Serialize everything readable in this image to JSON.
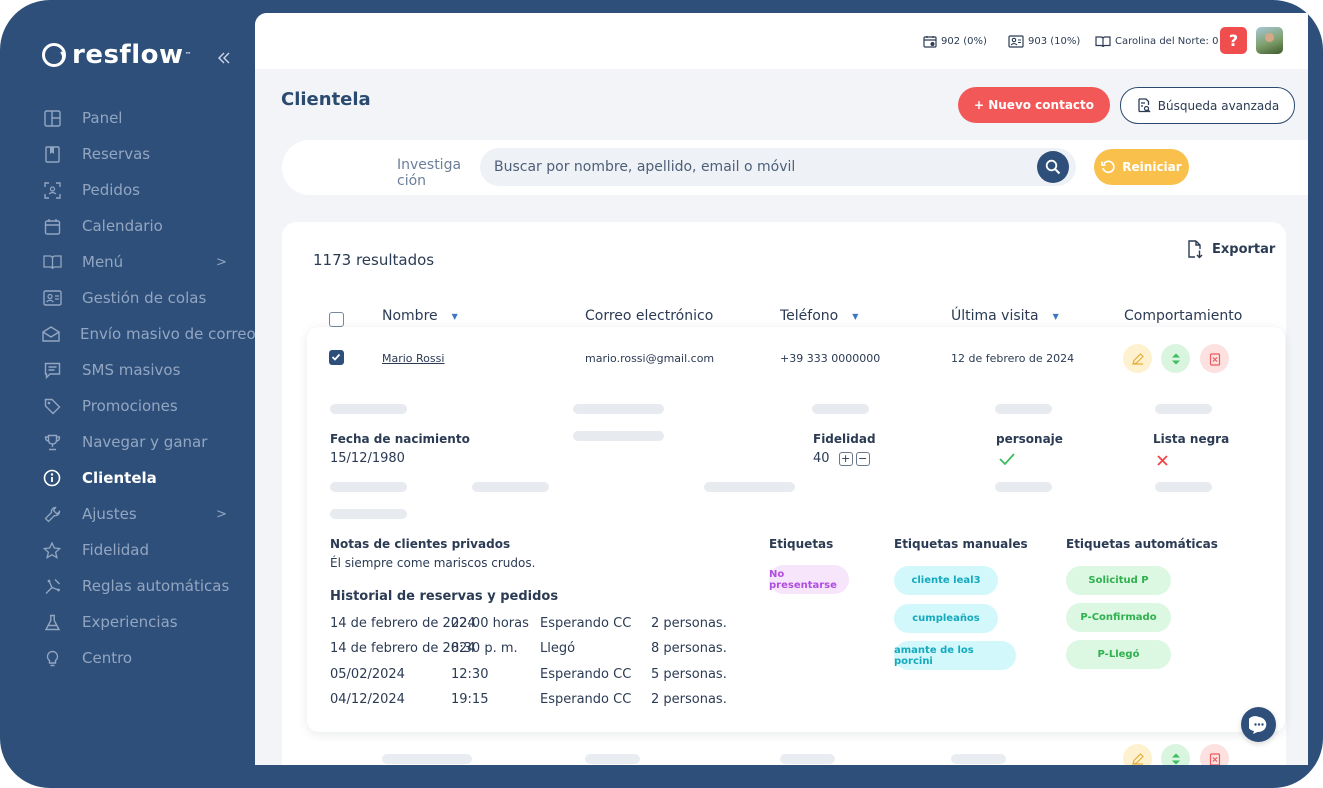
{
  "brand": {
    "name": "resflow",
    "tm": "™"
  },
  "sidebar": {
    "collapse_icon": "double-chevron-left-icon",
    "items": [
      {
        "label": "Panel",
        "icon": "panel-icon"
      },
      {
        "label": "Reservas",
        "icon": "bookmark-icon"
      },
      {
        "label": "Pedidos",
        "icon": "scan-icon"
      },
      {
        "label": "Calendario",
        "icon": "calendar-icon"
      },
      {
        "label": "Menú",
        "icon": "book-icon",
        "chevron": ">"
      },
      {
        "label": "Gestión de colas",
        "icon": "id-card-icon"
      },
      {
        "label": "Envío masivo de correo",
        "icon": "mail-icon"
      },
      {
        "label": "SMS masivos",
        "icon": "message-icon"
      },
      {
        "label": "Promociones",
        "icon": "tag-icon"
      },
      {
        "label": "Navegar y ganar",
        "icon": "trophy-icon"
      },
      {
        "label": "Clientela",
        "icon": "info-icon",
        "active": true
      },
      {
        "label": "Ajustes",
        "icon": "wrench-icon",
        "chevron": ">"
      },
      {
        "label": "Fidelidad",
        "icon": "star-icon"
      },
      {
        "label": "Reglas automáticas",
        "icon": "automation-icon"
      },
      {
        "label": "Experiencias",
        "icon": "flask-icon"
      },
      {
        "label": "Centro",
        "icon": "lightbulb-icon"
      }
    ]
  },
  "topbar": {
    "stat1": "902 (0%)",
    "stat2": "903 (10%)",
    "stat3": "Carolina del Norte: 0",
    "help_label": "?"
  },
  "page": {
    "title": "Clientela",
    "new_contact": "+ Nuevo contacto",
    "advanced_search": "Búsqueda avanzada"
  },
  "search": {
    "label": "Investiga ción",
    "placeholder": "Buscar por nombre, apellido, email o móvil",
    "value": "",
    "reset": "Reiniciar"
  },
  "results": {
    "count": "1173 resultados",
    "export": "Exportar",
    "columns": [
      "Nombre",
      "Correo electrónico",
      "Teléfono",
      "Última visita",
      "Comportamiento"
    ]
  },
  "customer": {
    "checked": true,
    "name": "Mario Rossi",
    "email": "mario.rossi@gmail.com",
    "phone": "+39 333 0000000",
    "last_visit": "12 de febrero de 2024",
    "birth_label": "Fecha de nacimiento",
    "birth_value": "15/12/1980",
    "loyalty_label": "Fidelidad",
    "loyalty_value": "40",
    "loyalty_plus": "+",
    "loyalty_minus": "−",
    "character_label": "personaje",
    "blacklist_label": "Lista negra",
    "notes_label": "Notas de clientes privados",
    "notes_value": "Él siempre come mariscos crudos.",
    "history_label": "Historial de reservas y pedidos",
    "history": [
      {
        "date": "14 de febrero de 2024",
        "time": "22:00 horas",
        "status": "Esperando CC",
        "people": "2 personas."
      },
      {
        "date": "14 de febrero de 2024",
        "time": "8:30 p. m.",
        "status": "Llegó",
        "people": "8 personas."
      },
      {
        "date": "05/02/2024",
        "time": "12:30",
        "status": "Esperando CC",
        "people": "5 personas."
      },
      {
        "date": "04/12/2024",
        "time": "19:15",
        "status": "Esperando CC",
        "people": "2 personas."
      }
    ],
    "tags_label": "Etiquetas",
    "tags": [
      "No presentarse"
    ],
    "manual_tags_label": "Etiquetas manuales",
    "manual_tags": [
      "cliente leal3",
      "cumpleaños",
      "amante de los porcini"
    ],
    "auto_tags_label": "Etiquetas automáticas",
    "auto_tags": [
      "Solicitud P",
      "P-Confirmado",
      "P-Llegó"
    ]
  },
  "colors": {
    "sidebar_bg": "#2e4f7a",
    "primary_red": "#f35858",
    "reset_yellow": "#f9c14c",
    "tag_purple": "#b04ddf",
    "tag_cyan": "#14a9bd",
    "tag_green": "#2fb14f"
  }
}
